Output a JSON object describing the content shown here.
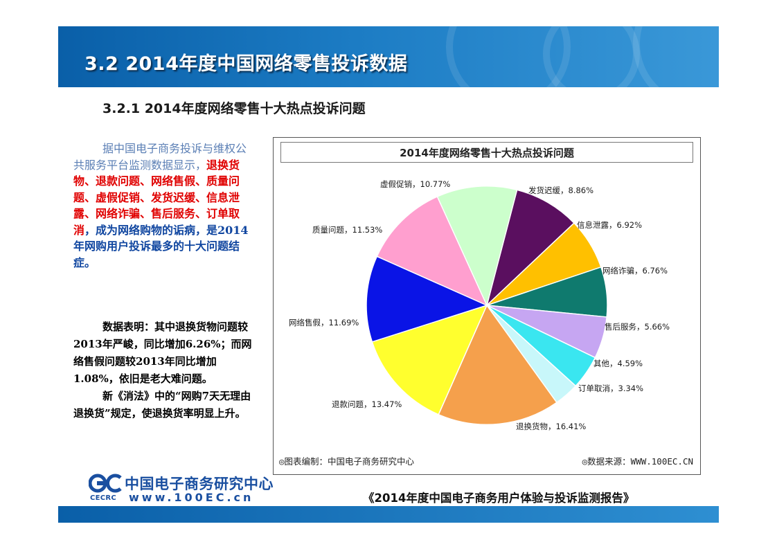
{
  "header": {
    "title": "3.2  2014年度中国网络零售投诉数据"
  },
  "subtitle": "3.2.1 2014年度网络零售十大热点投诉问题",
  "intro": {
    "part1": "据中国电子商务投诉与维权公共服务平台监测数据显示，",
    "highlight": "退换货物、退款问题、网络售假、质量问题、虚假促销、发货迟缓、信息泄露、网络诈骗、售后服务、订单取消",
    "part2": "，成为网络购物的诟病，是2014年网购用户投诉最多的十大问题结症。"
  },
  "notes": {
    "para1": "数据表明：其中退换货物问题较2013年严峻，同比增加6.26%；而网络售假问题较2013年同比增加1.08%，依旧是老大难问题。",
    "para2": "新《消法》中的“网购7天无理由退换货”规定，使退换货率明显上升。"
  },
  "chart_data": {
    "type": "pie",
    "title": "2014年度网络零售十大热点投诉问题",
    "slices": [
      {
        "name": "发货迟缓",
        "value": 8.86,
        "label": "发货迟缓，8.86%",
        "color": "#5a0f5f"
      },
      {
        "name": "信息泄露",
        "value": 6.92,
        "label": "信息泄露，6.92%",
        "color": "#ffc000"
      },
      {
        "name": "网络诈骗",
        "value": 6.76,
        "label": "网络诈骗，6.76%",
        "color": "#0f7a6e"
      },
      {
        "name": "售后服务",
        "value": 5.66,
        "label": "售后服务，5.66%",
        "color": "#c6a6f2"
      },
      {
        "name": "其他",
        "value": 4.59,
        "label": "其他，4.59%",
        "color": "#3ae6f0"
      },
      {
        "name": "订单取消",
        "value": 3.34,
        "label": "订单取消，3.34%",
        "color": "#c8f7fa"
      },
      {
        "name": "退换货物",
        "value": 16.41,
        "label": "退换货物，16.41%",
        "color": "#f5a04c"
      },
      {
        "name": "退款问题",
        "value": 13.47,
        "label": "退款问题，13.47%",
        "color": "#ffff2e"
      },
      {
        "name": "网络售假",
        "value": 11.69,
        "label": "网络售假，11.69%",
        "color": "#0a14e6"
      },
      {
        "name": "质量问题",
        "value": 11.53,
        "label": "质量问题，11.53%",
        "color": "#ff9fcf"
      },
      {
        "name": "虚假促销",
        "value": 10.77,
        "label": "虚假促销，10.77%",
        "color": "#ccffcc"
      }
    ],
    "credit": "◎图表编制：中国电子商务研究中心",
    "source": "◎数据来源：WWW.100EC.CN"
  },
  "logo": {
    "mark": "EC",
    "cecrc": "CECRC",
    "name": "中国电子商务研究中心",
    "url": "www.100EC.cn"
  },
  "report_title": "《2014年度中国电子商务用户体验与投诉监测报告》",
  "colors": {
    "header_blue": "#0a5fa8",
    "highlight_red": "#e00000",
    "text_blue": "#1046a0"
  }
}
